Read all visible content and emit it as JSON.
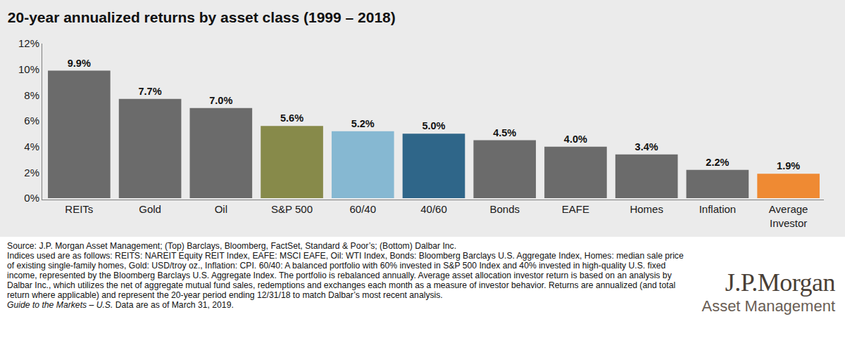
{
  "chart_data": {
    "type": "bar",
    "title": "20-year annualized returns by asset class (1999 – 2018)",
    "categories": [
      "REITs",
      "Gold",
      "Oil",
      "S&P 500",
      "60/40",
      "40/60",
      "Bonds",
      "EAFE",
      "Homes",
      "Inflation",
      "Average Investor"
    ],
    "values": [
      9.9,
      7.7,
      7.0,
      5.6,
      5.2,
      5.0,
      4.5,
      4.0,
      3.4,
      2.2,
      1.9
    ],
    "value_labels": [
      "9.9%",
      "7.7%",
      "7.0%",
      "5.6%",
      "5.2%",
      "5.0%",
      "4.5%",
      "4.0%",
      "3.4%",
      "2.2%",
      "1.9%"
    ],
    "colors": [
      "#6b6b6b",
      "#6b6b6b",
      "#6b6b6b",
      "#878a4a",
      "#86b8d2",
      "#2f6689",
      "#6b6b6b",
      "#6b6b6b",
      "#6b6b6b",
      "#6b6b6b",
      "#ef8a33"
    ],
    "data_labels": true,
    "grid": false,
    "ylim": [
      0,
      12
    ],
    "yticks": [
      {
        "value": 0,
        "label": "0%"
      },
      {
        "value": 2,
        "label": "2%"
      },
      {
        "value": 4,
        "label": "4%"
      },
      {
        "value": 6,
        "label": "6%"
      },
      {
        "value": 8,
        "label": "8%"
      },
      {
        "value": 10,
        "label": "10%"
      },
      {
        "value": 12,
        "label": "12%"
      }
    ],
    "footnote": [
      "Source: J.P. Morgan Asset Management; (Top) Barclays, Bloomberg, FactSet, Standard & Poor’s; (Bottom) Dalbar Inc.",
      "Indices used are as follows: REITS: NAREIT Equity REIT Index, EAFE: MSCI EAFE, Oil: WTI Index, Bonds: Bloomberg Barclays U.S. Aggregate Index, Homes: median sale price of existing single-family homes, Gold: USD/troy oz., Inflation: CPI. 60/40: A balanced portfolio with 60% invested in S&P 500 Index and 40% invested in high-quality U.S. fixed income, represented by the Bloomberg Barclays U.S. Aggregate Index. The portfolio is rebalanced annually. Average asset allocation investor return is based on an analysis by Dalbar Inc., which utilizes the net of aggregate mutual fund sales, redemptions and exchanges each month as a measure of investor behavior. Returns are annualized (and total return where applicable) and represent the 20-year period ending 12/31/18 to match Dalbar’s most recent analysis."
    ],
    "guide": {
      "publication": "Guide to the Markets – U.S.",
      "date_note": "Data are as of March 31, 2019."
    },
    "logo": {
      "name": "J.P.Morgan",
      "subtitle": "Asset Management"
    }
  }
}
